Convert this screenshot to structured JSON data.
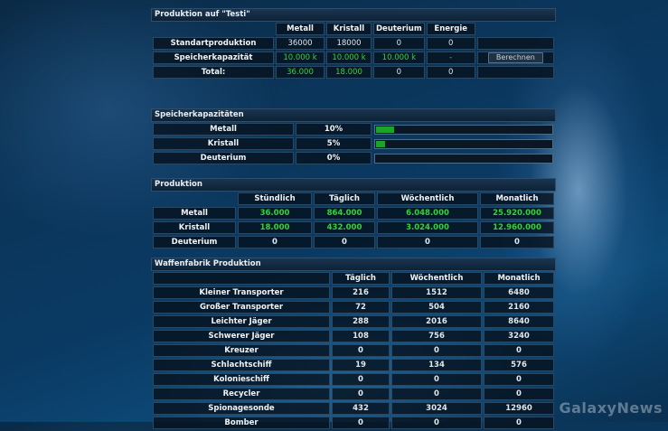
{
  "production": {
    "title": "Produktion auf \"Testi\"",
    "headers": [
      "Metall",
      "Kristall",
      "Deuterium",
      "Energie"
    ],
    "rows": [
      {
        "label": "Standartproduktion",
        "values": [
          "36000",
          "18000",
          "0",
          "0"
        ]
      },
      {
        "label": "Speicherkapazität",
        "values": [
          "10.000 k",
          "10.000 k",
          "10.000 k",
          "-"
        ]
      },
      {
        "label": "Total:",
        "values": [
          "36.000",
          "18.000",
          "0",
          "0"
        ]
      }
    ],
    "calc_button": "Berechnen"
  },
  "storage": {
    "title": "Speicherkapazitäten",
    "rows": [
      {
        "label": "Metall",
        "percent_text": "10%",
        "fill": 0.1
      },
      {
        "label": "Kristall",
        "percent_text": "5%",
        "fill": 0.05
      },
      {
        "label": "Deuterium",
        "percent_text": "0%",
        "fill": 0
      }
    ]
  },
  "produktion": {
    "title": "Produktion",
    "headers": [
      "Stündlich",
      "Täglich",
      "Wöchentlich",
      "Monatlich"
    ],
    "rows": [
      {
        "label": "Metall",
        "values": [
          "36.000",
          "864.000",
          "6.048.000",
          "25.920.000"
        ]
      },
      {
        "label": "Kristall",
        "values": [
          "18.000",
          "432.000",
          "3.024.000",
          "12.960.000"
        ]
      },
      {
        "label": "Deuterium",
        "values": [
          "0",
          "0",
          "0",
          "0"
        ]
      }
    ]
  },
  "weapons": {
    "title": "Waffenfabrik Produktion",
    "headers": [
      "Täglich",
      "Wöchentlich",
      "Monatlich"
    ],
    "rows": [
      {
        "label": "Kleiner Transporter",
        "values": [
          "216",
          "1512",
          "6480"
        ]
      },
      {
        "label": "Großer Transporter",
        "values": [
          "72",
          "504",
          "2160"
        ]
      },
      {
        "label": "Leichter Jäger",
        "values": [
          "288",
          "2016",
          "8640"
        ]
      },
      {
        "label": "Schwerer Jäger",
        "values": [
          "108",
          "756",
          "3240"
        ]
      },
      {
        "label": "Kreuzer",
        "values": [
          "0",
          "0",
          "0"
        ]
      },
      {
        "label": "Schlachtschiff",
        "values": [
          "19",
          "134",
          "576"
        ]
      },
      {
        "label": "Kolonieschiff",
        "values": [
          "0",
          "0",
          "0"
        ]
      },
      {
        "label": "Recycler",
        "values": [
          "0",
          "0",
          "0"
        ]
      },
      {
        "label": "Spionagesonde",
        "values": [
          "432",
          "3024",
          "12960"
        ]
      },
      {
        "label": "Bomber",
        "values": [
          "0",
          "0",
          "0"
        ]
      }
    ]
  },
  "watermark": "GalaxyNews"
}
